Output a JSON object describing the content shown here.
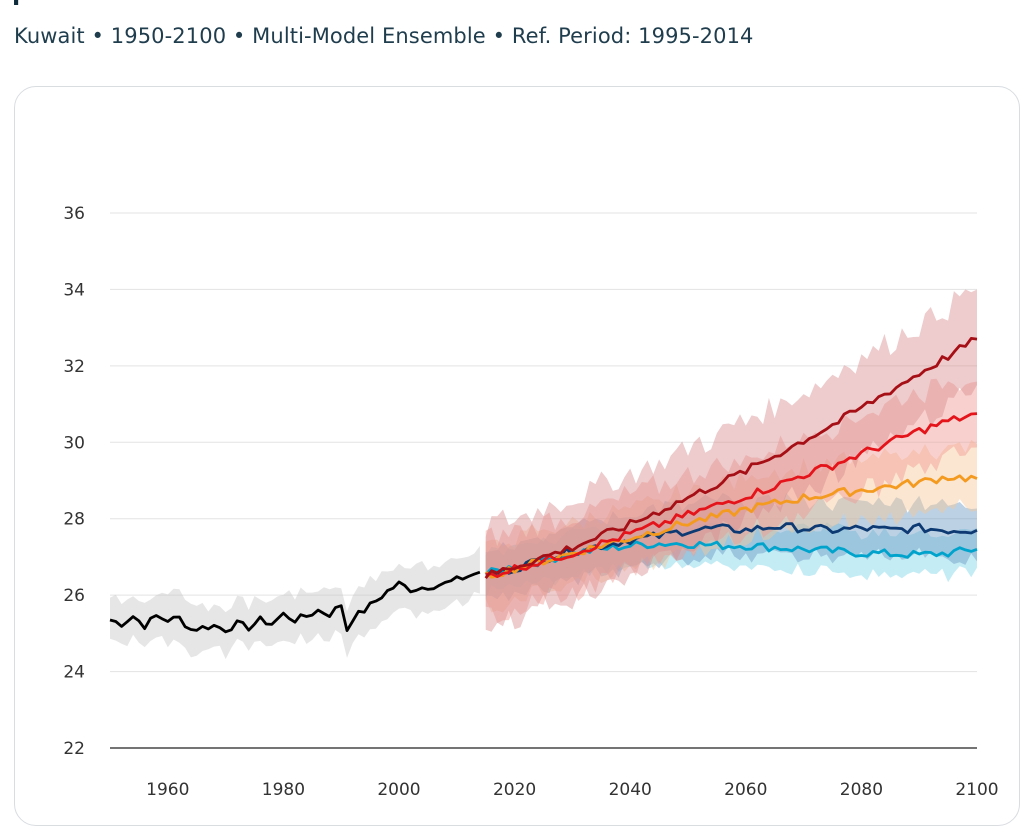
{
  "header": {
    "subtitle": "Kuwait • 1950-2100 • Multi-Model Ensemble • Ref. Period: 1995-2014"
  },
  "chart_data": {
    "type": "line",
    "title": "",
    "xlabel": "",
    "ylabel": "",
    "xlim": [
      1950,
      2100
    ],
    "ylim": [
      22,
      36
    ],
    "x_ticks": [
      "1960",
      "1980",
      "2000",
      "2020",
      "2040",
      "2060",
      "2080",
      "2100"
    ],
    "y_ticks": [
      "22",
      "24",
      "26",
      "28",
      "30",
      "32",
      "34",
      "36"
    ],
    "grid": true,
    "legend": "none",
    "historical": {
      "color": "#000000",
      "band_color": "#c8c8c8",
      "x": [
        1950,
        1952,
        1954,
        1956,
        1958,
        1960,
        1962,
        1964,
        1966,
        1968,
        1970,
        1972,
        1974,
        1976,
        1978,
        1980,
        1982,
        1984,
        1986,
        1988,
        1990,
        1991,
        1992,
        1994,
        1996,
        1998,
        2000,
        2002,
        2004,
        2006,
        2008,
        2010,
        2012,
        2014
      ],
      "y": [
        25.35,
        25.25,
        25.45,
        25.2,
        25.45,
        25.35,
        25.4,
        25.1,
        25.15,
        25.2,
        25.1,
        25.25,
        25.15,
        25.35,
        25.25,
        25.5,
        25.35,
        25.45,
        25.6,
        25.5,
        25.75,
        25.1,
        25.4,
        25.6,
        25.85,
        26.1,
        26.3,
        26.15,
        26.2,
        26.25,
        26.3,
        26.4,
        26.5,
        26.6
      ],
      "band_width": 0.6
    },
    "scenarios": [
      {
        "color": "#00a3cc",
        "band_color": "#7dd4e8",
        "x": [
          2015,
          2020,
          2025,
          2030,
          2035,
          2040,
          2045,
          2050,
          2055,
          2060,
          2065,
          2070,
          2075,
          2080,
          2085,
          2090,
          2095,
          2100
        ],
        "y": [
          26.55,
          26.75,
          26.9,
          27.1,
          27.2,
          27.3,
          27.35,
          27.35,
          27.3,
          27.3,
          27.25,
          27.2,
          27.15,
          27.1,
          27.08,
          27.05,
          27.1,
          27.2
        ],
        "band_width": 0.55
      },
      {
        "color": "#0d3a73",
        "band_color": "#6b9ac4",
        "x": [
          2015,
          2020,
          2025,
          2030,
          2035,
          2040,
          2045,
          2050,
          2055,
          2060,
          2065,
          2070,
          2075,
          2080,
          2085,
          2090,
          2095,
          2100
        ],
        "y": [
          26.5,
          26.7,
          26.95,
          27.15,
          27.3,
          27.45,
          27.55,
          27.7,
          27.75,
          27.7,
          27.8,
          27.75,
          27.7,
          27.75,
          27.7,
          27.75,
          27.7,
          27.7
        ],
        "band_width": 0.7
      },
      {
        "color": "#f39a1f",
        "band_color": "#f7c79a",
        "x": [
          2015,
          2020,
          2025,
          2030,
          2035,
          2040,
          2045,
          2050,
          2055,
          2060,
          2065,
          2070,
          2075,
          2080,
          2085,
          2090,
          2095,
          2100
        ],
        "y": [
          26.5,
          26.7,
          26.9,
          27.1,
          27.3,
          27.5,
          27.7,
          27.9,
          28.05,
          28.25,
          28.4,
          28.55,
          28.65,
          28.75,
          28.85,
          28.95,
          29.1,
          29.05
        ],
        "band_width": 0.8
      },
      {
        "color": "#e5141b",
        "band_color": "#f09a93",
        "x": [
          2015,
          2020,
          2025,
          2030,
          2035,
          2040,
          2045,
          2050,
          2055,
          2060,
          2065,
          2070,
          2075,
          2080,
          2085,
          2090,
          2095,
          2100
        ],
        "y": [
          26.5,
          26.7,
          26.9,
          27.1,
          27.35,
          27.6,
          27.85,
          28.1,
          28.35,
          28.6,
          28.85,
          29.15,
          29.4,
          29.7,
          30.0,
          30.3,
          30.55,
          30.75
        ],
        "band_width": 1.0
      },
      {
        "color": "#a50f15",
        "band_color": "#d98b8e",
        "x": [
          2015,
          2020,
          2025,
          2030,
          2035,
          2040,
          2045,
          2050,
          2055,
          2060,
          2065,
          2070,
          2075,
          2080,
          2085,
          2090,
          2095,
          2100
        ],
        "y": [
          26.5,
          26.75,
          27.0,
          27.25,
          27.55,
          27.85,
          28.2,
          28.55,
          28.9,
          29.25,
          29.65,
          30.05,
          30.45,
          30.9,
          31.35,
          31.8,
          32.25,
          32.7
        ],
        "band_width": 1.3
      }
    ]
  }
}
